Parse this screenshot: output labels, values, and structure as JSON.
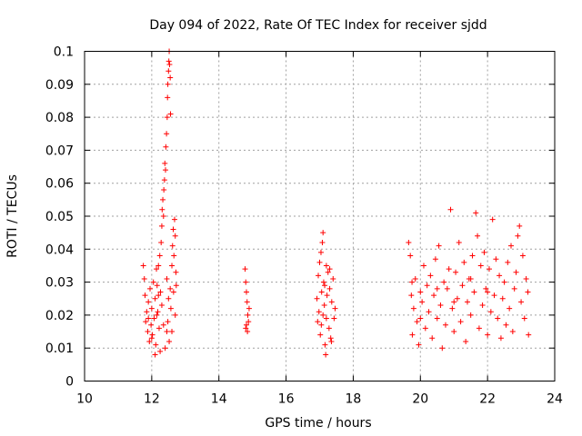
{
  "chart_data": {
    "type": "scatter",
    "title": "Day 094 of 2022, Rate Of TEC Index for receiver sjdd",
    "xlabel": "GPS time / hours",
    "ylabel": "ROTI / TECUs",
    "xlim": [
      10,
      24
    ],
    "ylim": [
      0,
      0.1
    ],
    "x_ticks": [
      "10",
      "12",
      "14",
      "16",
      "18",
      "20",
      "22",
      "24"
    ],
    "y_ticks": [
      "0",
      "0.01",
      "0.02",
      "0.03",
      "0.04",
      "0.05",
      "0.06",
      "0.07",
      "0.08",
      "0.09",
      "0.1"
    ],
    "grid": true,
    "marker": "+",
    "series_color": "#ff0000",
    "series": [
      {
        "name": "ROTI",
        "points": [
          [
            11.75,
            0.035
          ],
          [
            11.78,
            0.031
          ],
          [
            11.8,
            0.026
          ],
          [
            11.82,
            0.018
          ],
          [
            11.85,
            0.021
          ],
          [
            11.88,
            0.015
          ],
          [
            11.9,
            0.024
          ],
          [
            11.93,
            0.012
          ],
          [
            11.95,
            0.028
          ],
          [
            11.98,
            0.017
          ],
          [
            12.0,
            0.022
          ],
          [
            12.02,
            0.014
          ],
          [
            12.05,
            0.03
          ],
          [
            12.07,
            0.019
          ],
          [
            12.1,
            0.025
          ],
          [
            12.12,
            0.011
          ],
          [
            12.14,
            0.034
          ],
          [
            12.16,
            0.029
          ],
          [
            12.18,
            0.021
          ],
          [
            12.2,
            0.035
          ],
          [
            12.22,
            0.016
          ],
          [
            12.24,
            0.038
          ],
          [
            12.26,
            0.027
          ],
          [
            12.28,
            0.042
          ],
          [
            12.3,
            0.047
          ],
          [
            12.31,
            0.052
          ],
          [
            12.33,
            0.055
          ],
          [
            12.35,
            0.05
          ],
          [
            12.36,
            0.058
          ],
          [
            12.38,
            0.061
          ],
          [
            12.39,
            0.066
          ],
          [
            12.41,
            0.064
          ],
          [
            12.42,
            0.071
          ],
          [
            12.44,
            0.075
          ],
          [
            12.46,
            0.08
          ],
          [
            12.47,
            0.086
          ],
          [
            12.48,
            0.09
          ],
          [
            12.5,
            0.094
          ],
          [
            12.51,
            0.097
          ],
          [
            12.52,
            0.1
          ],
          [
            12.53,
            0.096
          ],
          [
            12.55,
            0.092
          ],
          [
            12.56,
            0.081
          ],
          [
            12.45,
            0.031
          ],
          [
            12.48,
            0.018
          ],
          [
            12.5,
            0.025
          ],
          [
            12.52,
            0.012
          ],
          [
            12.55,
            0.028
          ],
          [
            12.57,
            0.022
          ],
          [
            12.6,
            0.035
          ],
          [
            12.62,
            0.041
          ],
          [
            12.64,
            0.046
          ],
          [
            12.66,
            0.038
          ],
          [
            12.68,
            0.049
          ],
          [
            12.7,
            0.044
          ],
          [
            12.72,
            0.033
          ],
          [
            12.6,
            0.015
          ],
          [
            12.65,
            0.027
          ],
          [
            12.7,
            0.02
          ],
          [
            12.73,
            0.029
          ],
          [
            12.1,
            0.008
          ],
          [
            12.25,
            0.009
          ],
          [
            12.4,
            0.01
          ],
          [
            12.0,
            0.013
          ],
          [
            11.9,
            0.019
          ],
          [
            12.35,
            0.017
          ],
          [
            12.2,
            0.026
          ],
          [
            12.15,
            0.02
          ],
          [
            12.3,
            0.023
          ],
          [
            12.45,
            0.015
          ],
          [
            14.78,
            0.034
          ],
          [
            14.8,
            0.03
          ],
          [
            14.82,
            0.027
          ],
          [
            14.84,
            0.024
          ],
          [
            14.86,
            0.02
          ],
          [
            14.88,
            0.018
          ],
          [
            14.8,
            0.016
          ],
          [
            14.85,
            0.015
          ],
          [
            14.9,
            0.022
          ],
          [
            14.82,
            0.017
          ],
          [
            16.92,
            0.025
          ],
          [
            16.94,
            0.018
          ],
          [
            16.96,
            0.032
          ],
          [
            16.98,
            0.021
          ],
          [
            17.0,
            0.036
          ],
          [
            17.02,
            0.014
          ],
          [
            17.04,
            0.039
          ],
          [
            17.06,
            0.027
          ],
          [
            17.08,
            0.042
          ],
          [
            17.1,
            0.045
          ],
          [
            17.12,
            0.03
          ],
          [
            17.14,
            0.023
          ],
          [
            17.16,
            0.011
          ],
          [
            17.18,
            0.008
          ],
          [
            17.2,
            0.019
          ],
          [
            17.22,
            0.026
          ],
          [
            17.25,
            0.033
          ],
          [
            17.28,
            0.016
          ],
          [
            17.3,
            0.028
          ],
          [
            17.33,
            0.013
          ],
          [
            17.36,
            0.024
          ],
          [
            17.4,
            0.031
          ],
          [
            17.43,
            0.019
          ],
          [
            17.46,
            0.022
          ],
          [
            17.05,
            0.017
          ],
          [
            17.15,
            0.029
          ],
          [
            17.2,
            0.035
          ],
          [
            17.35,
            0.012
          ],
          [
            17.1,
            0.02
          ],
          [
            17.3,
            0.034
          ],
          [
            19.65,
            0.042
          ],
          [
            19.7,
            0.038
          ],
          [
            19.73,
            0.026
          ],
          [
            19.76,
            0.014
          ],
          [
            19.8,
            0.022
          ],
          [
            19.85,
            0.031
          ],
          [
            19.9,
            0.018
          ],
          [
            19.95,
            0.011
          ],
          [
            20.0,
            0.027
          ],
          [
            20.05,
            0.024
          ],
          [
            20.1,
            0.035
          ],
          [
            20.15,
            0.016
          ],
          [
            20.2,
            0.029
          ],
          [
            20.25,
            0.021
          ],
          [
            20.3,
            0.032
          ],
          [
            20.35,
            0.013
          ],
          [
            20.4,
            0.026
          ],
          [
            20.45,
            0.037
          ],
          [
            20.5,
            0.019
          ],
          [
            20.55,
            0.041
          ],
          [
            20.6,
            0.023
          ],
          [
            20.65,
            0.01
          ],
          [
            20.7,
            0.03
          ],
          [
            20.75,
            0.017
          ],
          [
            20.8,
            0.028
          ],
          [
            20.85,
            0.034
          ],
          [
            20.9,
            0.052
          ],
          [
            20.95,
            0.022
          ],
          [
            21.0,
            0.015
          ],
          [
            21.05,
            0.033
          ],
          [
            21.1,
            0.025
          ],
          [
            21.15,
            0.042
          ],
          [
            21.2,
            0.018
          ],
          [
            21.25,
            0.029
          ],
          [
            21.3,
            0.036
          ],
          [
            21.35,
            0.012
          ],
          [
            21.4,
            0.024
          ],
          [
            21.45,
            0.031
          ],
          [
            21.5,
            0.02
          ],
          [
            21.55,
            0.038
          ],
          [
            21.6,
            0.027
          ],
          [
            21.65,
            0.051
          ],
          [
            21.7,
            0.044
          ],
          [
            21.75,
            0.016
          ],
          [
            21.8,
            0.035
          ],
          [
            21.85,
            0.023
          ],
          [
            21.9,
            0.039
          ],
          [
            21.95,
            0.028
          ],
          [
            22.0,
            0.014
          ],
          [
            22.05,
            0.034
          ],
          [
            22.1,
            0.021
          ],
          [
            22.15,
            0.049
          ],
          [
            22.2,
            0.026
          ],
          [
            22.25,
            0.037
          ],
          [
            22.3,
            0.019
          ],
          [
            22.35,
            0.032
          ],
          [
            22.4,
            0.013
          ],
          [
            22.45,
            0.025
          ],
          [
            22.5,
            0.03
          ],
          [
            22.55,
            0.017
          ],
          [
            22.6,
            0.036
          ],
          [
            22.65,
            0.022
          ],
          [
            22.7,
            0.041
          ],
          [
            22.75,
            0.015
          ],
          [
            22.8,
            0.028
          ],
          [
            22.85,
            0.033
          ],
          [
            22.9,
            0.044
          ],
          [
            22.95,
            0.047
          ],
          [
            23.0,
            0.024
          ],
          [
            23.05,
            0.038
          ],
          [
            23.1,
            0.019
          ],
          [
            23.15,
            0.031
          ],
          [
            23.2,
            0.027
          ],
          [
            23.22,
            0.014
          ],
          [
            19.75,
            0.03
          ],
          [
            20.0,
            0.019
          ],
          [
            20.5,
            0.028
          ],
          [
            21.0,
            0.024
          ],
          [
            21.5,
            0.031
          ],
          [
            22.0,
            0.027
          ]
        ]
      }
    ]
  }
}
